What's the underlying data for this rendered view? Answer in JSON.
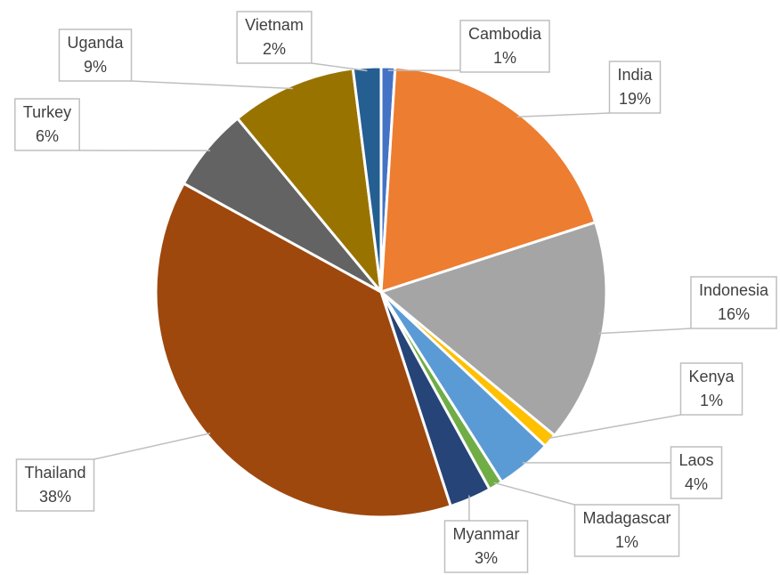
{
  "chart_data": {
    "type": "pie",
    "categories": [
      "Cambodia",
      "India",
      "Indonesia",
      "Kenya",
      "Laos",
      "Madagascar",
      "Myanmar",
      "Thailand",
      "Turkey",
      "Uganda",
      "Vietnam"
    ],
    "values": [
      1,
      19,
      16,
      1,
      4,
      1,
      3,
      38,
      6,
      9,
      2
    ],
    "value_labels": [
      "1%",
      "19%",
      "16%",
      "1%",
      "4%",
      "1%",
      "3%",
      "38%",
      "6%",
      "9%",
      "2%"
    ],
    "colors": [
      "#4472c4",
      "#ed7d31",
      "#a5a5a5",
      "#ffc000",
      "#5b9bd5",
      "#70ad47",
      "#264478",
      "#9e480e",
      "#636363",
      "#997300",
      "#255e91"
    ]
  }
}
